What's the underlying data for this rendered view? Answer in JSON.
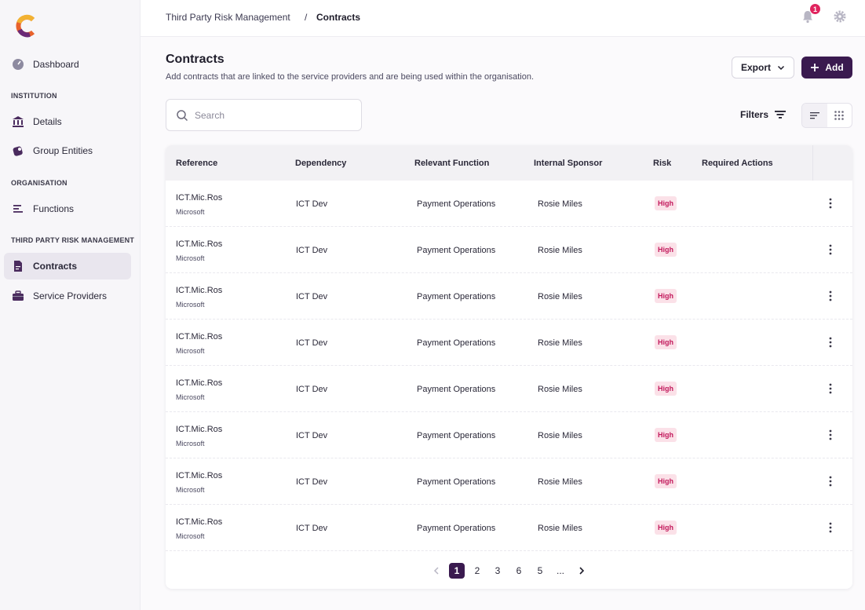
{
  "sidebar": {
    "items": [
      {
        "label": "Dashboard",
        "icon": "gauge-icon"
      },
      {
        "label": "Details",
        "icon": "bank-icon"
      },
      {
        "label": "Group Entities",
        "icon": "entities-icon"
      },
      {
        "label": "Functions",
        "icon": "lines-icon"
      },
      {
        "label": "Contracts",
        "icon": "document-icon",
        "active": true
      },
      {
        "label": "Service Providers",
        "icon": "briefcase-icon"
      }
    ],
    "sections": [
      "INSTITUTION",
      "ORGANISATION",
      "THIRD PARTY RISK MANAGEMENT"
    ]
  },
  "header": {
    "breadcrumb_parent": "Third Party Risk Management",
    "breadcrumb_sep": "/",
    "breadcrumb_current": "Contracts",
    "notification_count": "1"
  },
  "page": {
    "title": "Contracts",
    "subtitle": "Add contracts that are linked to the service providers and are being used within the organisation.",
    "export_label": "Export",
    "add_label": "Add",
    "search_placeholder": "Search",
    "filters_label": "Filters"
  },
  "table": {
    "columns": [
      "Reference",
      "Dependency",
      "Relevant Function",
      "Internal Sponsor",
      "Risk",
      "Required Actions"
    ],
    "rows": [
      {
        "ref": "ICT.Mic.Ros",
        "vendor": "Microsoft",
        "dependency": "ICT Dev",
        "function": "Payment Operations",
        "sponsor": "Rosie Miles",
        "risk": "High"
      },
      {
        "ref": "ICT.Mic.Ros",
        "vendor": "Microsoft",
        "dependency": "ICT Dev",
        "function": "Payment Operations",
        "sponsor": "Rosie Miles",
        "risk": "High"
      },
      {
        "ref": "ICT.Mic.Ros",
        "vendor": "Microsoft",
        "dependency": "ICT Dev",
        "function": "Payment Operations",
        "sponsor": "Rosie Miles",
        "risk": "High"
      },
      {
        "ref": "ICT.Mic.Ros",
        "vendor": "Microsoft",
        "dependency": "ICT Dev",
        "function": "Payment Operations",
        "sponsor": "Rosie Miles",
        "risk": "High"
      },
      {
        "ref": "ICT.Mic.Ros",
        "vendor": "Microsoft",
        "dependency": "ICT Dev",
        "function": "Payment Operations",
        "sponsor": "Rosie Miles",
        "risk": "High"
      },
      {
        "ref": "ICT.Mic.Ros",
        "vendor": "Microsoft",
        "dependency": "ICT Dev",
        "function": "Payment Operations",
        "sponsor": "Rosie Miles",
        "risk": "High"
      },
      {
        "ref": "ICT.Mic.Ros",
        "vendor": "Microsoft",
        "dependency": "ICT Dev",
        "function": "Payment Operations",
        "sponsor": "Rosie Miles",
        "risk": "High"
      },
      {
        "ref": "ICT.Mic.Ros",
        "vendor": "Microsoft",
        "dependency": "ICT Dev",
        "function": "Payment Operations",
        "sponsor": "Rosie Miles",
        "risk": "High"
      }
    ]
  },
  "pagination": {
    "pages": [
      "1",
      "2",
      "3",
      "6",
      "5",
      "..."
    ],
    "current": "1"
  },
  "colors": {
    "brand": "#3a1a4f",
    "risk_high_bg": "#fbe1e8",
    "risk_high_text": "#c2185b",
    "badge": "#e0245e"
  }
}
